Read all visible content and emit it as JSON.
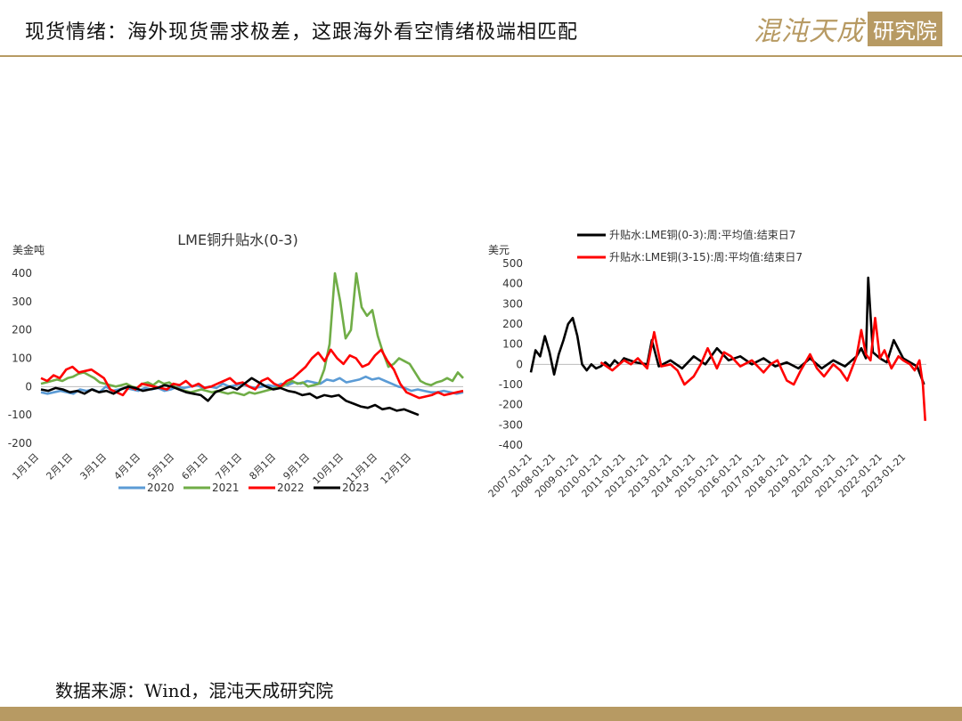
{
  "header": {
    "title": "现货情绪：海外现货需求极差，这跟海外看空情绪极端相匹配",
    "logo_script": "混沌天成",
    "logo_box": "研究院"
  },
  "footer": {
    "source": "数据来源：Wind，混沌天成研究院"
  },
  "colors": {
    "accent": "#b79a63",
    "s2020": "#5b9bd5",
    "s2021": "#70ad47",
    "s2022": "#ff0000",
    "s2023": "#000000"
  },
  "chart_data": [
    {
      "type": "line",
      "title": "LME铜升贴水(0-3)",
      "ylabel": "美金吨",
      "ylim": [
        -200,
        400
      ],
      "yticks": [
        "400",
        "300",
        "200",
        "100",
        "0",
        "-100",
        "-200"
      ],
      "x_labels": [
        "1月1日",
        "2月1日",
        "3月1日",
        "4月1日",
        "5月1日",
        "6月1日",
        "7月1日",
        "8月1日",
        "9月1日",
        "10月1日",
        "11月1日",
        "12月1日"
      ],
      "legend": [
        "2020",
        "2021",
        "2022",
        "2023"
      ],
      "series": [
        {
          "name": "2020",
          "values": [
            -20,
            -25,
            -20,
            -15,
            -20,
            -25,
            -10,
            -15,
            -10,
            -20,
            0,
            -15,
            -10,
            -5,
            -10,
            -15,
            -5,
            -10,
            -5,
            -15,
            -10,
            0,
            -5,
            0,
            5,
            -5,
            0,
            -5,
            10,
            0,
            5,
            10,
            0,
            -5,
            0,
            5,
            0,
            10,
            5,
            15,
            10,
            20,
            15,
            10,
            25,
            20,
            30,
            15,
            20,
            25,
            35,
            25,
            30,
            20,
            10,
            0,
            -5,
            -15,
            -10,
            -15,
            -20,
            -20,
            -15,
            -20,
            -25,
            -20
          ]
        },
        {
          "name": "2021",
          "values": [
            10,
            15,
            20,
            25,
            20,
            30,
            35,
            45,
            50,
            40,
            30,
            15,
            10,
            5,
            0,
            5,
            10,
            0,
            -5,
            10,
            15,
            5,
            20,
            10,
            15,
            0,
            -10,
            -15,
            -20,
            -15,
            -10,
            -15,
            -20,
            -15,
            -20,
            -25,
            -20,
            -25,
            -30,
            -20,
            -25,
            -20,
            -15,
            -10,
            -5,
            0,
            10,
            20,
            10,
            15,
            0,
            5,
            10,
            60,
            150,
            400,
            300,
            170,
            200,
            400,
            280,
            250,
            270,
            180,
            120,
            70,
            80,
            100,
            90,
            80,
            50,
            20,
            10,
            5,
            15,
            20,
            30,
            20,
            50,
            30
          ]
        },
        {
          "name": "2022",
          "values": [
            30,
            20,
            40,
            30,
            60,
            70,
            50,
            55,
            60,
            45,
            30,
            -10,
            -20,
            -30,
            0,
            -10,
            10,
            5,
            0,
            -5,
            -10,
            10,
            5,
            20,
            0,
            10,
            -5,
            0,
            10,
            20,
            30,
            10,
            15,
            0,
            -10,
            20,
            30,
            10,
            0,
            20,
            30,
            50,
            70,
            100,
            120,
            90,
            130,
            100,
            80,
            110,
            100,
            70,
            80,
            110,
            130,
            90,
            60,
            10,
            -20,
            -30,
            -40,
            -35,
            -30,
            -20,
            -30,
            -25,
            -20,
            -15
          ]
        },
        {
          "name": "2023",
          "values": [
            -10,
            -15,
            -5,
            -10,
            -20,
            -15,
            -25,
            -10,
            -20,
            -15,
            -25,
            -10,
            0,
            -5,
            -15,
            -10,
            -5,
            5,
            0,
            -10,
            -20,
            -25,
            -30,
            -50,
            -20,
            -10,
            0,
            -10,
            10,
            30,
            15,
            0,
            -10,
            -5,
            -15,
            -20,
            -30,
            -25,
            -40,
            -30,
            -35,
            -30,
            -50,
            -60,
            -70,
            -75,
            -65,
            -80,
            -75,
            -85,
            -80,
            -90,
            -100
          ]
        }
      ]
    },
    {
      "type": "line",
      "ylabel": "美元",
      "ylim": [
        -400,
        500
      ],
      "yticks": [
        "500",
        "400",
        "300",
        "200",
        "100",
        "0",
        "-100",
        "-200",
        "-300",
        "-400"
      ],
      "x_labels": [
        "2007-01-21",
        "2008-01-21",
        "2009-01-21",
        "2010-01-21",
        "2011-01-21",
        "2012-01-21",
        "2013-01-21",
        "2014-01-21",
        "2015-01-21",
        "2016-01-21",
        "2017-01-21",
        "2018-01-21",
        "2019-01-21",
        "2020-01-21",
        "2021-01-21",
        "2022-01-21",
        "2023-01-21"
      ],
      "legend": [
        "升贴水:LME铜(0-3):周:平均值:结束日7",
        "升贴水:LME铜(3-15):周:平均值:结束日7"
      ],
      "x_start": 2007.0,
      "series": [
        {
          "name": "升贴水:LME铜(0-3):周:平均值:结束日7",
          "x": [
            2007.0,
            2007.2,
            2007.4,
            2007.6,
            2007.8,
            2008.0,
            2008.2,
            2008.4,
            2008.6,
            2008.8,
            2009.0,
            2009.2,
            2009.4,
            2009.6,
            2009.8,
            2010.0,
            2010.2,
            2010.4,
            2010.6,
            2010.8,
            2011.0,
            2011.5,
            2012.0,
            2012.2,
            2012.5,
            2013.0,
            2013.5,
            2014.0,
            2014.5,
            2015.0,
            2015.5,
            2016.0,
            2016.5,
            2017.0,
            2017.5,
            2018.0,
            2018.5,
            2019.0,
            2019.5,
            2020.0,
            2020.5,
            2021.0,
            2021.2,
            2021.4,
            2021.5,
            2021.7,
            2022.0,
            2022.3,
            2022.6,
            2023.0,
            2023.3,
            2023.6,
            2023.9
          ],
          "values": [
            -40,
            70,
            40,
            140,
            60,
            -50,
            50,
            120,
            200,
            230,
            140,
            0,
            -30,
            0,
            -20,
            -10,
            10,
            -10,
            20,
            0,
            30,
            10,
            0,
            120,
            -10,
            20,
            -20,
            40,
            0,
            80,
            20,
            40,
            0,
            30,
            -10,
            10,
            -20,
            30,
            -20,
            20,
            -10,
            40,
            80,
            30,
            430,
            60,
            30,
            10,
            120,
            30,
            10,
            -10,
            -100
          ]
        },
        {
          "name": "升贴水:LME铜(3-15):周:平均值:结束日7",
          "x": [
            2010.0,
            2010.5,
            2011.0,
            2011.3,
            2011.6,
            2012.0,
            2012.3,
            2012.6,
            2013.0,
            2013.3,
            2013.6,
            2014.0,
            2014.3,
            2014.6,
            2015.0,
            2015.3,
            2015.6,
            2016.0,
            2016.5,
            2017.0,
            2017.3,
            2017.6,
            2018.0,
            2018.3,
            2018.6,
            2019.0,
            2019.3,
            2019.6,
            2020.0,
            2020.3,
            2020.6,
            2021.0,
            2021.2,
            2021.4,
            2021.6,
            2021.8,
            2022.0,
            2022.2,
            2022.5,
            2022.8,
            2023.0,
            2023.3,
            2023.5,
            2023.7,
            2023.85,
            2023.95
          ],
          "values": [
            10,
            -30,
            20,
            0,
            30,
            -20,
            160,
            -10,
            0,
            -30,
            -100,
            -60,
            0,
            80,
            -20,
            60,
            40,
            -10,
            20,
            -40,
            0,
            20,
            -80,
            -100,
            -30,
            50,
            -20,
            -60,
            0,
            -30,
            -80,
            40,
            170,
            50,
            20,
            230,
            30,
            70,
            -20,
            40,
            20,
            0,
            -30,
            20,
            -100,
            -280
          ]
        }
      ]
    }
  ]
}
